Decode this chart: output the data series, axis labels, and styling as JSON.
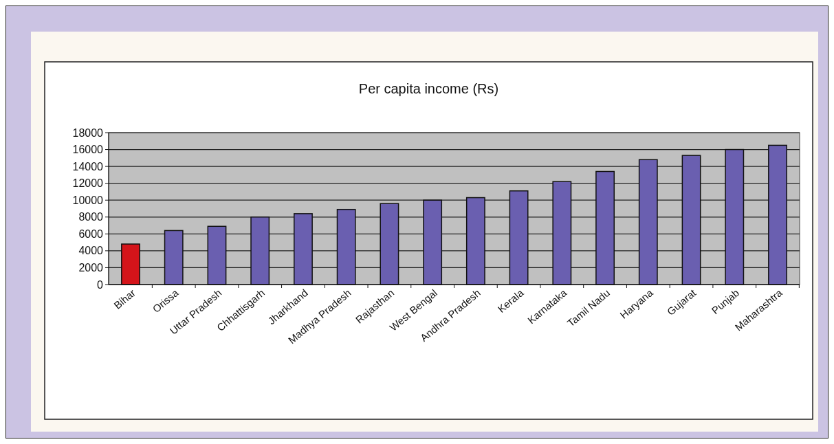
{
  "chart_data": {
    "type": "bar",
    "title": "Per capita income (Rs)",
    "categories": [
      "Bihar",
      "Orissa",
      "Uttar Pradesh",
      "Chhattisgarh",
      "Jharkhand",
      "Madhya Pradesh",
      "Rajasthan",
      "West Bengal",
      "Andhra Pradesh",
      "Kerala",
      "Karnataka",
      "Tamil Nadu",
      "Haryana",
      "Gujarat",
      "Punjab",
      "Maharashtra"
    ],
    "values": [
      4800,
      6400,
      6900,
      8000,
      8400,
      8900,
      9600,
      10000,
      10300,
      11100,
      12200,
      13400,
      14800,
      15300,
      16000,
      16500
    ],
    "colors": [
      "#d4141a",
      "#6a5fb0",
      "#6a5fb0",
      "#6a5fb0",
      "#6a5fb0",
      "#6a5fb0",
      "#6a5fb0",
      "#6a5fb0",
      "#6a5fb0",
      "#6a5fb0",
      "#6a5fb0",
      "#6a5fb0",
      "#6a5fb0",
      "#6a5fb0",
      "#6a5fb0",
      "#6a5fb0"
    ],
    "ylim": [
      0,
      18000
    ],
    "yticks": [
      0,
      2000,
      4000,
      6000,
      8000,
      10000,
      12000,
      14000,
      16000,
      18000
    ],
    "grid": "y"
  }
}
